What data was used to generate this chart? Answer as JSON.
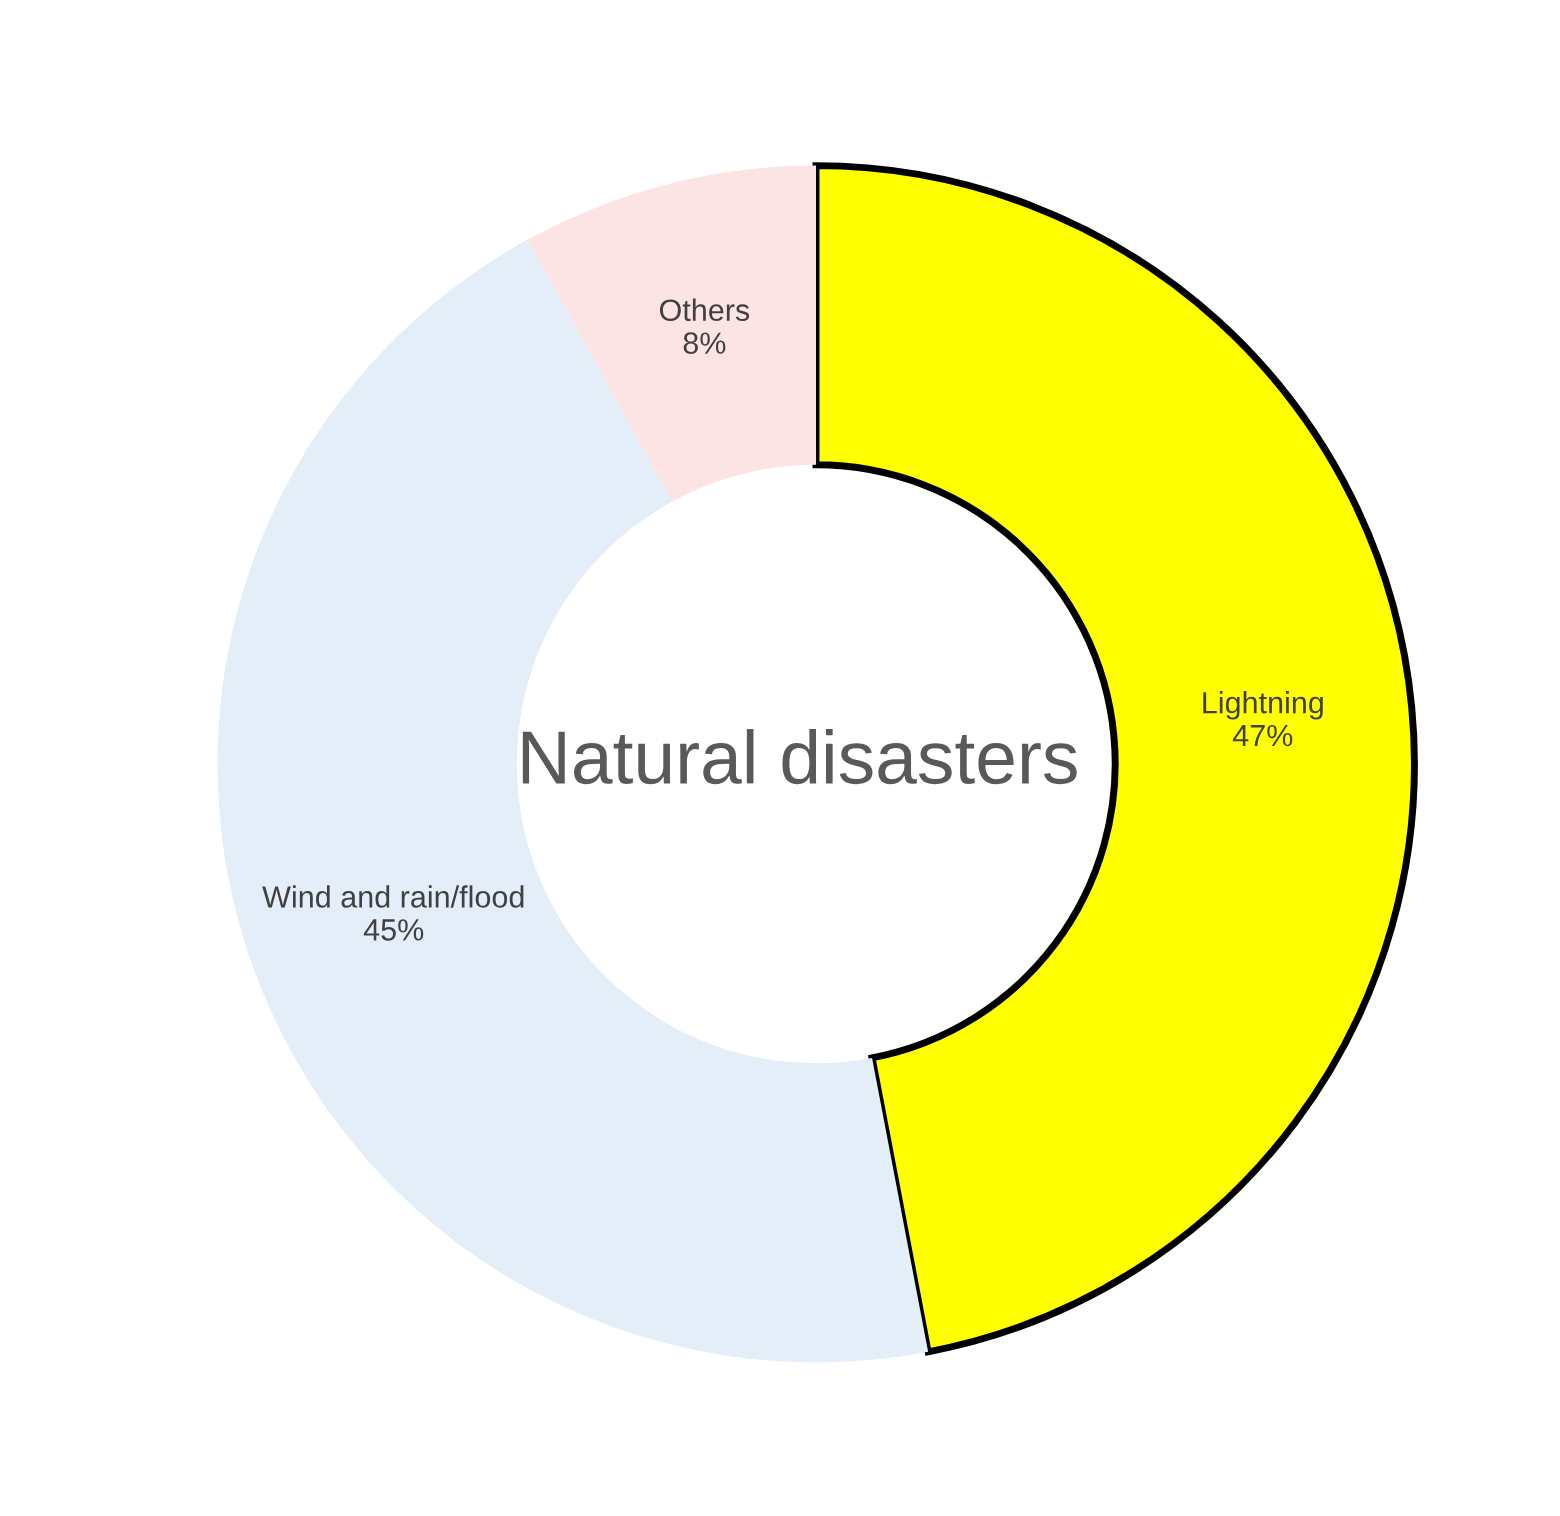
{
  "chart_data": {
    "type": "donut",
    "title": "Natural disasters",
    "categories": [
      "Lightning",
      "Wind and rain/flood",
      "Others"
    ],
    "values": [
      47,
      45,
      8
    ],
    "colors": [
      "#ffff00",
      "#e4eef8",
      "#fde4e4"
    ],
    "value_labels": [
      "47%",
      "45%",
      "8%"
    ]
  }
}
